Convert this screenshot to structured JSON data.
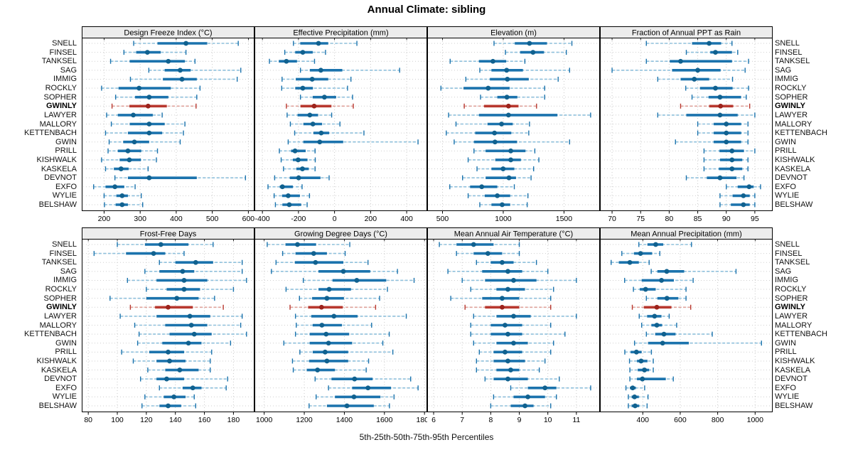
{
  "title": "Annual Climate: sibling",
  "footer": "5th-25th-50th-75th-95th Percentiles",
  "percentile_labels": [
    "5th",
    "25th",
    "50th",
    "75th",
    "95th"
  ],
  "sites": [
    "SNELL",
    "FINSEL",
    "TANKSEL",
    "SAG",
    "IMMIG",
    "ROCKLY",
    "SOPHER",
    "GWINLY",
    "LAWYER",
    "MALLORY",
    "KETTENBACH",
    "GWIN",
    "PRILL",
    "KISHWALK",
    "KASKELA",
    "DEVNOT",
    "EXFO",
    "WYLIE",
    "BELSHAW"
  ],
  "highlight_site": "GWINLY",
  "colors": {
    "blue": "#1b73ad",
    "blue_light": "#8fc0dc",
    "blue_dot": "#10618f",
    "red": "#b8382f",
    "red_light": "#dfa29b",
    "red_dot": "#9c231c",
    "strip_bg": "#ececec",
    "grid": "#c9c9c9",
    "border": "#000000"
  },
  "chart_data": [
    {
      "type": "percentile-range",
      "title": "Design Freeze Index (°C)",
      "row": 1,
      "xlim": [
        140,
        615
      ],
      "ticks": [
        200,
        300,
        400,
        500,
        600
      ],
      "values": [
        [
          282,
          348,
          427,
          486,
          572
        ],
        [
          255,
          289,
          320,
          357,
          427
        ],
        [
          218,
          271,
          378,
          424,
          452
        ],
        [
          324,
          368,
          411,
          440,
          579
        ],
        [
          273,
          363,
          416,
          457,
          569
        ],
        [
          193,
          240,
          297,
          385,
          466
        ],
        [
          232,
          286,
          325,
          378,
          457
        ],
        [
          222,
          270,
          322,
          374,
          455
        ],
        [
          207,
          238,
          281,
          335,
          361
        ],
        [
          220,
          271,
          325,
          368,
          424
        ],
        [
          204,
          266,
          325,
          361,
          420
        ],
        [
          214,
          253,
          284,
          325,
          411
        ],
        [
          211,
          238,
          266,
          303,
          348
        ],
        [
          193,
          243,
          270,
          302,
          345
        ],
        [
          204,
          227,
          247,
          268,
          322
        ],
        [
          230,
          266,
          325,
          457,
          592
        ],
        [
          171,
          204,
          230,
          256,
          286
        ],
        [
          200,
          234,
          250,
          266,
          303
        ],
        [
          201,
          232,
          250,
          266,
          307
        ]
      ]
    },
    {
      "type": "percentile-range",
      "title": "Effective Precipitation (mm)",
      "row": 1,
      "xlim": [
        -440,
        510
      ],
      "ticks": [
        -400,
        -200,
        0,
        200,
        400
      ],
      "values": [
        [
          -228,
          -190,
          -89,
          -35,
          124
        ],
        [
          -276,
          -218,
          -176,
          -121,
          -50
        ],
        [
          -361,
          -309,
          -267,
          -208,
          -111
        ],
        [
          -189,
          -137,
          -76,
          43,
          361
        ],
        [
          -291,
          -215,
          -124,
          -35,
          91
        ],
        [
          -293,
          -218,
          -176,
          -120,
          72
        ],
        [
          -189,
          -121,
          -56,
          9,
          100
        ],
        [
          -267,
          -189,
          -113,
          -17,
          104
        ],
        [
          -263,
          -205,
          -137,
          -91,
          -16
        ],
        [
          -245,
          -173,
          -120,
          -69,
          30
        ],
        [
          -221,
          -117,
          -74,
          -30,
          163
        ],
        [
          -257,
          -173,
          -82,
          48,
          463
        ],
        [
          -306,
          -241,
          -219,
          -160,
          -108
        ],
        [
          -296,
          -231,
          -202,
          -150,
          -107
        ],
        [
          -283,
          -212,
          -178,
          -143,
          -108
        ],
        [
          -332,
          -248,
          -199,
          -78,
          -30
        ],
        [
          -369,
          -304,
          -289,
          -231,
          -180
        ],
        [
          -335,
          -291,
          -257,
          -192,
          -139
        ],
        [
          -328,
          -289,
          -251,
          -185,
          -152
        ]
      ]
    },
    {
      "type": "percentile-range",
      "title": "Elevation (m)",
      "row": 1,
      "xlim": [
        380,
        1790
      ],
      "ticks": [
        500,
        1000,
        1500
      ],
      "values": [
        [
          924,
          1095,
          1216,
          1360,
          1565
        ],
        [
          1018,
          1139,
          1245,
          1335,
          1519
        ],
        [
          563,
          800,
          915,
          1024,
          1178
        ],
        [
          807,
          903,
          1028,
          1162,
          1546
        ],
        [
          692,
          890,
          1034,
          1210,
          1452
        ],
        [
          487,
          673,
          876,
          1053,
          1341
        ],
        [
          813,
          951,
          1030,
          1116,
          1341
        ],
        [
          679,
          842,
          1043,
          1126,
          1274
        ],
        [
          550,
          800,
          1043,
          1446,
          1719
        ],
        [
          611,
          870,
          986,
          1078,
          1216
        ],
        [
          531,
          769,
          928,
          1066,
          1210
        ],
        [
          596,
          759,
          932,
          1114,
          1546
        ],
        [
          759,
          855,
          1062,
          1183,
          1260
        ],
        [
          711,
          934,
          1062,
          1145,
          1293
        ],
        [
          784,
          903,
          999,
          1091,
          1250
        ],
        [
          665,
          855,
          1047,
          1105,
          1229
        ],
        [
          560,
          727,
          823,
          951,
          1091
        ],
        [
          711,
          848,
          951,
          1057,
          1203
        ],
        [
          807,
          903,
          991,
          1057,
          1197
        ]
      ]
    },
    {
      "type": "percentile-range",
      "title": "Fraction of Annual PPT as Rain",
      "row": 1,
      "xlim": [
        68,
        98
      ],
      "ticks": [
        70,
        75,
        80,
        85,
        90,
        95
      ],
      "values": [
        [
          76,
          84,
          87,
          89.1,
          91
        ],
        [
          83,
          87.2,
          88.1,
          91,
          92
        ],
        [
          76,
          80.1,
          82,
          91,
          93.9
        ],
        [
          70,
          80.5,
          85,
          89,
          93.3
        ],
        [
          78,
          82,
          84.4,
          87,
          91.1
        ],
        [
          82.9,
          85.4,
          88.1,
          91.1,
          93.9
        ],
        [
          84,
          86.9,
          88.9,
          92.6,
          93.5
        ],
        [
          82,
          87,
          89,
          91.2,
          94.1
        ],
        [
          78,
          83,
          88.9,
          92,
          95
        ],
        [
          85,
          87.8,
          90,
          92.6,
          93.8
        ],
        [
          85,
          87.8,
          90,
          92.6,
          93.8
        ],
        [
          81.1,
          87.8,
          90,
          92.6,
          93.8
        ],
        [
          86.1,
          88.8,
          91,
          93.1,
          95
        ],
        [
          86.1,
          88.9,
          91,
          92.8,
          93.8
        ],
        [
          86.1,
          88.7,
          91,
          92.8,
          93.8
        ],
        [
          83,
          86.6,
          88.9,
          91.8,
          93.1
        ],
        [
          90,
          92,
          94,
          94.8,
          96
        ],
        [
          88.9,
          91.1,
          93,
          94.1,
          95
        ],
        [
          88.9,
          90.8,
          93,
          94.1,
          95
        ]
      ]
    },
    {
      "type": "percentile-range",
      "title": "Frost-Free Days",
      "row": 2,
      "xlim": [
        76,
        194
      ],
      "ticks": [
        80,
        100,
        120,
        140,
        160,
        180
      ],
      "values": [
        [
          100,
          119,
          130,
          149,
          166
        ],
        [
          84,
          106,
          125,
          133,
          146
        ],
        [
          129,
          140,
          154,
          166,
          186
        ],
        [
          119,
          129,
          145,
          153,
          186
        ],
        [
          107,
          127,
          146,
          162,
          189
        ],
        [
          120,
          134,
          146,
          157,
          180
        ],
        [
          95,
          120,
          141,
          156,
          167
        ],
        [
          109,
          126,
          135,
          152,
          173
        ],
        [
          102,
          127,
          150,
          164,
          186
        ],
        [
          112,
          133,
          151,
          162,
          185
        ],
        [
          115,
          136,
          153,
          165,
          189
        ],
        [
          114,
          131,
          149,
          158,
          178
        ],
        [
          103,
          122,
          135,
          146,
          165
        ],
        [
          111,
          127,
          136,
          147,
          164
        ],
        [
          121,
          133,
          143,
          156,
          164
        ],
        [
          116,
          127,
          134,
          146,
          176
        ],
        [
          129,
          145,
          152,
          158,
          175
        ],
        [
          119,
          132,
          139,
          147,
          153
        ],
        [
          117,
          129,
          135,
          144,
          154
        ]
      ]
    },
    {
      "type": "percentile-range",
      "title": "Growing Degree Days (°C)",
      "row": 2,
      "xlim": [
        955,
        1810
      ],
      "ticks": [
        1000,
        1200,
        1400,
        1600,
        1800
      ],
      "values": [
        [
          1015,
          1106,
          1166,
          1259,
          1427
        ],
        [
          1092,
          1156,
          1247,
          1313,
          1404
        ],
        [
          1059,
          1153,
          1256,
          1395,
          1518
        ],
        [
          1036,
          1271,
          1395,
          1529,
          1665
        ],
        [
          1195,
          1341,
          1462,
          1609,
          1748
        ],
        [
          1109,
          1271,
          1324,
          1433,
          1615
        ],
        [
          1176,
          1239,
          1313,
          1398,
          1576
        ],
        [
          1129,
          1219,
          1286,
          1392,
          1556
        ],
        [
          1156,
          1235,
          1348,
          1466,
          1709
        ],
        [
          1160,
          1242,
          1288,
          1388,
          1536
        ],
        [
          1156,
          1227,
          1309,
          1424,
          1624
        ],
        [
          1098,
          1227,
          1321,
          1439,
          1592
        ],
        [
          1178,
          1242,
          1304,
          1419,
          1642
        ],
        [
          1141,
          1224,
          1313,
          1419,
          1521
        ],
        [
          1145,
          1212,
          1266,
          1353,
          1509
        ],
        [
          1254,
          1336,
          1451,
          1541,
          1731
        ],
        [
          1321,
          1439,
          1518,
          1633,
          1768
        ],
        [
          1259,
          1353,
          1448,
          1580,
          1648
        ],
        [
          1224,
          1313,
          1413,
          1547,
          1625
        ]
      ]
    },
    {
      "type": "percentile-range",
      "title": "Mean Annual Air Temperature (°C)",
      "row": 2,
      "xlim": [
        5.8,
        11.8
      ],
      "ticks": [
        6,
        7,
        8,
        9,
        10,
        11
      ],
      "values": [
        [
          6.2,
          6.8,
          7.4,
          8.1,
          9.0
        ],
        [
          6.8,
          7.4,
          7.9,
          8.4,
          9.0
        ],
        [
          7.5,
          8.0,
          8.4,
          8.8,
          9.6
        ],
        [
          6.5,
          7.7,
          8.6,
          9.1,
          10.0
        ],
        [
          7.0,
          7.8,
          8.8,
          9.6,
          11.0
        ],
        [
          7.3,
          8.2,
          8.6,
          9.2,
          10.2
        ],
        [
          6.6,
          7.7,
          8.4,
          9.0,
          10.1
        ],
        [
          7.1,
          7.8,
          8.4,
          9.0,
          10.1
        ],
        [
          7.4,
          8.2,
          8.8,
          9.4,
          11.0
        ],
        [
          7.3,
          8.0,
          8.5,
          9.1,
          10.1
        ],
        [
          7.3,
          8.0,
          8.6,
          9.1,
          10.6
        ],
        [
          7.4,
          8.2,
          8.8,
          9.3,
          10.2
        ],
        [
          7.6,
          8.1,
          8.5,
          9.1,
          10.1
        ],
        [
          7.5,
          8.1,
          8.6,
          9.2,
          9.9
        ],
        [
          7.5,
          8.2,
          8.7,
          9.0,
          9.7
        ],
        [
          7.8,
          8.1,
          8.6,
          9.3,
          10.4
        ],
        [
          8.7,
          9.3,
          9.9,
          10.3,
          11.5
        ],
        [
          8.1,
          8.8,
          9.3,
          9.9,
          10.3
        ],
        [
          8.0,
          8.7,
          9.2,
          9.5,
          10.1
        ]
      ]
    },
    {
      "type": "percentile-range",
      "title": "Mean Annual Precipitation (mm)",
      "row": 2,
      "xlim": [
        175,
        1090
      ],
      "ticks": [
        400,
        600,
        800,
        1000
      ],
      "values": [
        [
          379,
          425,
          469,
          509,
          660
        ],
        [
          288,
          353,
          388,
          450,
          491
        ],
        [
          231,
          272,
          331,
          379,
          434
        ],
        [
          445,
          478,
          528,
          621,
          898
        ],
        [
          303,
          394,
          500,
          566,
          669
        ],
        [
          350,
          384,
          415,
          469,
          631
        ],
        [
          419,
          478,
          529,
          590,
          631
        ],
        [
          344,
          406,
          475,
          553,
          656
        ],
        [
          381,
          423,
          463,
          500,
          541
        ],
        [
          394,
          446,
          475,
          503,
          581
        ],
        [
          419,
          466,
          513,
          575,
          771
        ],
        [
          356,
          428,
          506,
          646,
          1034
        ],
        [
          304,
          335,
          366,
          394,
          446
        ],
        [
          329,
          369,
          391,
          425,
          456
        ],
        [
          331,
          373,
          409,
          434,
          456
        ],
        [
          331,
          369,
          398,
          523,
          563
        ],
        [
          310,
          331,
          346,
          363,
          410
        ],
        [
          323,
          340,
          356,
          379,
          428
        ],
        [
          323,
          340,
          359,
          381,
          423
        ]
      ]
    }
  ]
}
